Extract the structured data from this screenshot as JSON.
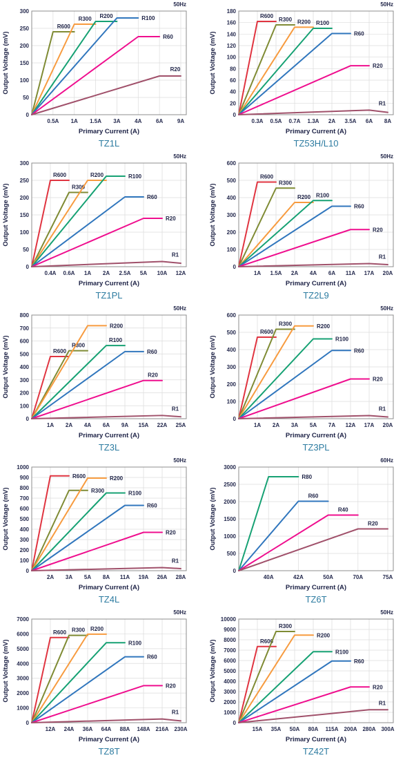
{
  "chart_data": [
    {
      "type": "line",
      "title": "TZ1L",
      "freq_label": "50Hz",
      "xlabel": "Primary Current (A)",
      "ylabel": "Output Voltage (mV)",
      "x_ticks": [
        "0.5A",
        "1A",
        "1.5A",
        "3A",
        "4A",
        "6A",
        "9A"
      ],
      "ylim": [
        0,
        300
      ],
      "y_step": 50,
      "grid": true,
      "legend_position": "inline-labels",
      "series": [
        {
          "name": "R600",
          "color": "#7f8b34",
          "peak_tick": 1,
          "peak_mv": 240,
          "flat_to_tick": 2,
          "end_mv": 240,
          "label_pos": "above"
        },
        {
          "name": "R300",
          "color": "#f79b3f",
          "peak_tick": 2,
          "peak_mv": 262,
          "flat_to_tick": 3,
          "end_mv": 262,
          "label_pos": "above"
        },
        {
          "name": "R200",
          "color": "#16a173",
          "peak_tick": 3,
          "peak_mv": 270,
          "flat_to_tick": 4,
          "end_mv": 270,
          "label_pos": "above"
        },
        {
          "name": "R100",
          "color": "#3076bd",
          "peak_tick": 4,
          "peak_mv": 280,
          "flat_to_tick": 5,
          "end_mv": 280,
          "label_pos": "right"
        },
        {
          "name": "R60",
          "color": "#ef0e8e",
          "peak_tick": 5,
          "peak_mv": 226,
          "flat_to_tick": 6,
          "end_mv": 226,
          "label_pos": "right"
        },
        {
          "name": "R20",
          "color": "#a0506a",
          "peak_tick": 6,
          "peak_mv": 112,
          "flat_to_tick": 7,
          "end_mv": 112,
          "label_pos": "above-end"
        }
      ]
    },
    {
      "type": "line",
      "title": "TZ53H/L10",
      "freq_label": "50Hz",
      "xlabel": "Primary Current (A)",
      "ylabel": "Output Voltage (mV)",
      "x_ticks": [
        "0.3A",
        "0.5A",
        "0.7A",
        "1.3A",
        "2A",
        "3.5A",
        "6A",
        "8A"
      ],
      "ylim": [
        0,
        180
      ],
      "y_step": 20,
      "grid": true,
      "legend_position": "inline-labels",
      "series": [
        {
          "name": "R600",
          "color": "#e03440",
          "peak_tick": 1,
          "peak_mv": 162,
          "flat_to_tick": 2,
          "end_mv": 162,
          "label_pos": "above"
        },
        {
          "name": "R300",
          "color": "#7f8b34",
          "peak_tick": 2,
          "peak_mv": 156,
          "flat_to_tick": 3,
          "end_mv": 156,
          "label_pos": "above"
        },
        {
          "name": "R200",
          "color": "#f79b3f",
          "peak_tick": 3,
          "peak_mv": 152,
          "flat_to_tick": 4,
          "end_mv": 152,
          "label_pos": "above"
        },
        {
          "name": "R100",
          "color": "#16a173",
          "peak_tick": 4,
          "peak_mv": 150,
          "flat_to_tick": 5,
          "end_mv": 150,
          "label_pos": "above"
        },
        {
          "name": "R60",
          "color": "#3076bd",
          "peak_tick": 5,
          "peak_mv": 141,
          "flat_to_tick": 6,
          "end_mv": 141,
          "label_pos": "right"
        },
        {
          "name": "R20",
          "color": "#ef0e8e",
          "peak_tick": 6,
          "peak_mv": 85,
          "flat_to_tick": 7,
          "end_mv": 85,
          "label_pos": "right"
        },
        {
          "name": "R1",
          "color": "#a0506a",
          "peak_tick": 7,
          "peak_mv": 8,
          "flat_to_tick": 8,
          "end_mv": 4,
          "label_pos": "above-end"
        }
      ]
    },
    {
      "type": "line",
      "title": "TZ1PL",
      "freq_label": "50Hz",
      "xlabel": "Primary Current (A)",
      "ylabel": "Output Voltage (mV)",
      "x_ticks": [
        "0.4A",
        "0.6A",
        "1A",
        "2A",
        "2.5A",
        "5A",
        "10A",
        "12A"
      ],
      "ylim": [
        0,
        300
      ],
      "y_step": 50,
      "grid": true,
      "legend_position": "inline-labels",
      "series": [
        {
          "name": "R600",
          "color": "#e03440",
          "peak_tick": 1,
          "peak_mv": 250,
          "flat_to_tick": 2,
          "end_mv": 250,
          "label_pos": "above"
        },
        {
          "name": "R300",
          "color": "#7f8b34",
          "peak_tick": 2,
          "peak_mv": 215,
          "flat_to_tick": 3,
          "end_mv": 215,
          "label_pos": "above"
        },
        {
          "name": "R200",
          "color": "#f79b3f",
          "peak_tick": 3,
          "peak_mv": 250,
          "flat_to_tick": 4,
          "end_mv": 250,
          "label_pos": "above"
        },
        {
          "name": "R100",
          "color": "#16a173",
          "peak_tick": 4,
          "peak_mv": 262,
          "flat_to_tick": 5,
          "end_mv": 262,
          "label_pos": "right"
        },
        {
          "name": "R60",
          "color": "#3076bd",
          "peak_tick": 5,
          "peak_mv": 202,
          "flat_to_tick": 6,
          "end_mv": 202,
          "label_pos": "right"
        },
        {
          "name": "R20",
          "color": "#ef0e8e",
          "peak_tick": 6,
          "peak_mv": 140,
          "flat_to_tick": 7,
          "end_mv": 140,
          "label_pos": "right"
        },
        {
          "name": "R1",
          "color": "#a0506a",
          "peak_tick": 7,
          "peak_mv": 15,
          "flat_to_tick": 8,
          "end_mv": 10,
          "label_pos": "above-end"
        }
      ]
    },
    {
      "type": "line",
      "title": "TZ2L9",
      "freq_label": "50Hz",
      "xlabel": "Primary Current (A)",
      "ylabel": "Output Voltage (mV)",
      "x_ticks": [
        "1A",
        "1.5A",
        "2A",
        "4A",
        "6A",
        "11A",
        "17A",
        "20A"
      ],
      "ylim": [
        0,
        600
      ],
      "y_step": 100,
      "grid": true,
      "legend_position": "inline-labels",
      "series": [
        {
          "name": "R600",
          "color": "#e03440",
          "peak_tick": 1,
          "peak_mv": 490,
          "flat_to_tick": 2,
          "end_mv": 490,
          "label_pos": "above"
        },
        {
          "name": "R300",
          "color": "#7f8b34",
          "peak_tick": 2,
          "peak_mv": 455,
          "flat_to_tick": 3,
          "end_mv": 455,
          "label_pos": "above"
        },
        {
          "name": "R200",
          "color": "#f79b3f",
          "peak_tick": 3,
          "peak_mv": 372,
          "flat_to_tick": 4,
          "end_mv": 372,
          "label_pos": "above"
        },
        {
          "name": "R100",
          "color": "#16a173",
          "peak_tick": 4,
          "peak_mv": 383,
          "flat_to_tick": 5,
          "end_mv": 383,
          "label_pos": "above"
        },
        {
          "name": "R60",
          "color": "#3076bd",
          "peak_tick": 5,
          "peak_mv": 350,
          "flat_to_tick": 6,
          "end_mv": 350,
          "label_pos": "right"
        },
        {
          "name": "R20",
          "color": "#ef0e8e",
          "peak_tick": 6,
          "peak_mv": 215,
          "flat_to_tick": 7,
          "end_mv": 215,
          "label_pos": "right"
        },
        {
          "name": "R1",
          "color": "#a0506a",
          "peak_tick": 7,
          "peak_mv": 18,
          "flat_to_tick": 8,
          "end_mv": 12,
          "label_pos": "above-end"
        }
      ]
    },
    {
      "type": "line",
      "title": "TZ3L",
      "freq_label": "50Hz",
      "xlabel": "Primary Current (A)",
      "ylabel": "Output Voltage (mV)",
      "x_ticks": [
        "1A",
        "2A",
        "4A",
        "6A",
        "9A",
        "15A",
        "22A",
        "25A"
      ],
      "ylim": [
        0,
        800
      ],
      "y_step": 100,
      "grid": true,
      "legend_position": "inline-labels",
      "series": [
        {
          "name": "R600",
          "color": "#e03440",
          "peak_tick": 1,
          "peak_mv": 480,
          "flat_to_tick": 2,
          "end_mv": 480,
          "label_pos": "above"
        },
        {
          "name": "R300",
          "color": "#7f8b34",
          "peak_tick": 2,
          "peak_mv": 525,
          "flat_to_tick": 3,
          "end_mv": 525,
          "label_pos": "above"
        },
        {
          "name": "R200",
          "color": "#f79b3f",
          "peak_tick": 3,
          "peak_mv": 718,
          "flat_to_tick": 4,
          "end_mv": 718,
          "label_pos": "right"
        },
        {
          "name": "R100",
          "color": "#16a173",
          "peak_tick": 4,
          "peak_mv": 565,
          "flat_to_tick": 5,
          "end_mv": 565,
          "label_pos": "above"
        },
        {
          "name": "R60",
          "color": "#3076bd",
          "peak_tick": 5,
          "peak_mv": 518,
          "flat_to_tick": 6,
          "end_mv": 518,
          "label_pos": "right"
        },
        {
          "name": "R20",
          "color": "#ef0e8e",
          "peak_tick": 6,
          "peak_mv": 295,
          "flat_to_tick": 7,
          "end_mv": 295,
          "label_pos": "above"
        },
        {
          "name": "R1",
          "color": "#a0506a",
          "peak_tick": 7,
          "peak_mv": 25,
          "flat_to_tick": 8,
          "end_mv": 15,
          "label_pos": "above-end"
        }
      ]
    },
    {
      "type": "line",
      "title": "TZ3PL",
      "freq_label": "50Hz",
      "xlabel": "Primary Current (A)",
      "ylabel": "Output Voltage (mV)",
      "x_ticks": [
        "1A",
        "2A",
        "3A",
        "5A",
        "7A",
        "12A",
        "17A",
        "20A"
      ],
      "ylim": [
        0,
        600
      ],
      "y_step": 100,
      "grid": true,
      "legend_position": "inline-labels",
      "series": [
        {
          "name": "R600",
          "color": "#e03440",
          "peak_tick": 1,
          "peak_mv": 472,
          "flat_to_tick": 2,
          "end_mv": 472,
          "label_pos": "above"
        },
        {
          "name": "R300",
          "color": "#7f8b34",
          "peak_tick": 2,
          "peak_mv": 518,
          "flat_to_tick": 3,
          "end_mv": 518,
          "label_pos": "above"
        },
        {
          "name": "R200",
          "color": "#f79b3f",
          "peak_tick": 3,
          "peak_mv": 537,
          "flat_to_tick": 4,
          "end_mv": 537,
          "label_pos": "right"
        },
        {
          "name": "R100",
          "color": "#16a173",
          "peak_tick": 4,
          "peak_mv": 462,
          "flat_to_tick": 5,
          "end_mv": 462,
          "label_pos": "right"
        },
        {
          "name": "R60",
          "color": "#3076bd",
          "peak_tick": 5,
          "peak_mv": 395,
          "flat_to_tick": 6,
          "end_mv": 395,
          "label_pos": "right"
        },
        {
          "name": "R20",
          "color": "#ef0e8e",
          "peak_tick": 6,
          "peak_mv": 230,
          "flat_to_tick": 7,
          "end_mv": 230,
          "label_pos": "right"
        },
        {
          "name": "R1",
          "color": "#a0506a",
          "peak_tick": 7,
          "peak_mv": 18,
          "flat_to_tick": 8,
          "end_mv": 10,
          "label_pos": "above-end"
        }
      ]
    },
    {
      "type": "line",
      "title": "TZ4L",
      "freq_label": "50Hz",
      "xlabel": "Primary Current (A)",
      "ylabel": "Output Voltage (mV)",
      "x_ticks": [
        "2A",
        "3A",
        "5A",
        "8A",
        "11A",
        "19A",
        "26A",
        "28A"
      ],
      "ylim": [
        0,
        1000
      ],
      "y_step": 100,
      "grid": true,
      "legend_position": "inline-labels",
      "series": [
        {
          "name": "R600",
          "color": "#e03440",
          "peak_tick": 1,
          "peak_mv": 915,
          "flat_to_tick": 2,
          "end_mv": 915,
          "label_pos": "right"
        },
        {
          "name": "R300",
          "color": "#7f8b34",
          "peak_tick": 2,
          "peak_mv": 775,
          "flat_to_tick": 3,
          "end_mv": 775,
          "label_pos": "right"
        },
        {
          "name": "R200",
          "color": "#f79b3f",
          "peak_tick": 3,
          "peak_mv": 893,
          "flat_to_tick": 4,
          "end_mv": 893,
          "label_pos": "right"
        },
        {
          "name": "R100",
          "color": "#16a173",
          "peak_tick": 4,
          "peak_mv": 750,
          "flat_to_tick": 5,
          "end_mv": 750,
          "label_pos": "right"
        },
        {
          "name": "R60",
          "color": "#3076bd",
          "peak_tick": 5,
          "peak_mv": 630,
          "flat_to_tick": 6,
          "end_mv": 630,
          "label_pos": "right"
        },
        {
          "name": "R20",
          "color": "#ef0e8e",
          "peak_tick": 6,
          "peak_mv": 370,
          "flat_to_tick": 7,
          "end_mv": 370,
          "label_pos": "right"
        },
        {
          "name": "R1",
          "color": "#a0506a",
          "peak_tick": 7,
          "peak_mv": 30,
          "flat_to_tick": 8,
          "end_mv": 20,
          "label_pos": "above-end"
        }
      ]
    },
    {
      "type": "line",
      "title": "TZ6T",
      "freq_label": "60Hz",
      "xlabel": "Primary Current (A)",
      "ylabel": "Output Voltage (mV)",
      "x_ticks": [
        "40A",
        "42A",
        "50A",
        "70A",
        "75A"
      ],
      "ylim": [
        0,
        3000
      ],
      "y_step": 500,
      "grid": true,
      "legend_position": "inline-labels",
      "series": [
        {
          "name": "R80",
          "color": "#16a173",
          "peak_tick": 1,
          "peak_mv": 2720,
          "flat_to_tick": 2,
          "end_mv": 2720,
          "label_pos": "right"
        },
        {
          "name": "R60",
          "color": "#3076bd",
          "peak_tick": 2,
          "peak_mv": 2010,
          "flat_to_tick": 3,
          "end_mv": 2010,
          "label_pos": "above"
        },
        {
          "name": "R40",
          "color": "#ef0e8e",
          "peak_tick": 3,
          "peak_mv": 1610,
          "flat_to_tick": 4,
          "end_mv": 1610,
          "label_pos": "above"
        },
        {
          "name": "R20",
          "color": "#a0506a",
          "peak_tick": 4,
          "peak_mv": 1210,
          "flat_to_tick": 5,
          "end_mv": 1210,
          "label_pos": "above"
        }
      ]
    },
    {
      "type": "line",
      "title": "TZ8T",
      "freq_label": "50Hz",
      "xlabel": "Primary Current (A)",
      "ylabel": "Output Voltage (mV)",
      "x_ticks": [
        "12A",
        "24A",
        "36A",
        "64A",
        "88A",
        "148A",
        "216A",
        "230A"
      ],
      "ylim": [
        0,
        7000
      ],
      "y_step": 1000,
      "grid": true,
      "legend_position": "inline-labels",
      "series": [
        {
          "name": "R600",
          "color": "#e03440",
          "peak_tick": 1,
          "peak_mv": 5750,
          "flat_to_tick": 2,
          "end_mv": 5750,
          "label_pos": "above"
        },
        {
          "name": "R300",
          "color": "#7f8b34",
          "peak_tick": 2,
          "peak_mv": 5900,
          "flat_to_tick": 3,
          "end_mv": 5900,
          "label_pos": "above"
        },
        {
          "name": "R200",
          "color": "#f79b3f",
          "peak_tick": 3,
          "peak_mv": 5980,
          "flat_to_tick": 4,
          "end_mv": 5980,
          "label_pos": "above"
        },
        {
          "name": "R100",
          "color": "#16a173",
          "peak_tick": 4,
          "peak_mv": 5400,
          "flat_to_tick": 5,
          "end_mv": 5400,
          "label_pos": "right"
        },
        {
          "name": "R60",
          "color": "#3076bd",
          "peak_tick": 5,
          "peak_mv": 4450,
          "flat_to_tick": 6,
          "end_mv": 4450,
          "label_pos": "right"
        },
        {
          "name": "R20",
          "color": "#ef0e8e",
          "peak_tick": 6,
          "peak_mv": 2500,
          "flat_to_tick": 7,
          "end_mv": 2500,
          "label_pos": "right"
        },
        {
          "name": "R1",
          "color": "#a0506a",
          "peak_tick": 7,
          "peak_mv": 250,
          "flat_to_tick": 8,
          "end_mv": 120,
          "label_pos": "above-end"
        }
      ]
    },
    {
      "type": "line",
      "title": "TZ42T",
      "freq_label": "50Hz",
      "xlabel": "Primary Current (A)",
      "ylabel": "Output Voltage (mV)",
      "x_ticks": [
        "15A",
        "35A",
        "50A",
        "80A",
        "115A",
        "200A",
        "280A",
        "300A"
      ],
      "ylim": [
        0,
        10000
      ],
      "y_step": 1000,
      "grid": true,
      "legend_position": "inline-labels",
      "series": [
        {
          "name": "R600",
          "color": "#e03440",
          "peak_tick": 1,
          "peak_mv": 7350,
          "flat_to_tick": 2,
          "end_mv": 7350,
          "label_pos": "above"
        },
        {
          "name": "R300",
          "color": "#7f8b34",
          "peak_tick": 2,
          "peak_mv": 8800,
          "flat_to_tick": 3,
          "end_mv": 8800,
          "label_pos": "above"
        },
        {
          "name": "R200",
          "color": "#f79b3f",
          "peak_tick": 3,
          "peak_mv": 8450,
          "flat_to_tick": 4,
          "end_mv": 8450,
          "label_pos": "right"
        },
        {
          "name": "R100",
          "color": "#16a173",
          "peak_tick": 4,
          "peak_mv": 6850,
          "flat_to_tick": 5,
          "end_mv": 6850,
          "label_pos": "right"
        },
        {
          "name": "R60",
          "color": "#3076bd",
          "peak_tick": 5,
          "peak_mv": 5950,
          "flat_to_tick": 6,
          "end_mv": 5950,
          "label_pos": "right"
        },
        {
          "name": "R20",
          "color": "#ef0e8e",
          "peak_tick": 6,
          "peak_mv": 3450,
          "flat_to_tick": 7,
          "end_mv": 3450,
          "label_pos": "right"
        },
        {
          "name": "R1",
          "color": "#a0506a",
          "peak_tick": 7,
          "peak_mv": 1250,
          "flat_to_tick": 8,
          "end_mv": 1250,
          "label_pos": "above-end"
        }
      ]
    }
  ],
  "styles": {
    "grid_color": "#dcdcdc",
    "plot_border_color": "#8c8c8c",
    "tick_text_color": "#252a4e",
    "title_color": "#2c7ba0"
  }
}
